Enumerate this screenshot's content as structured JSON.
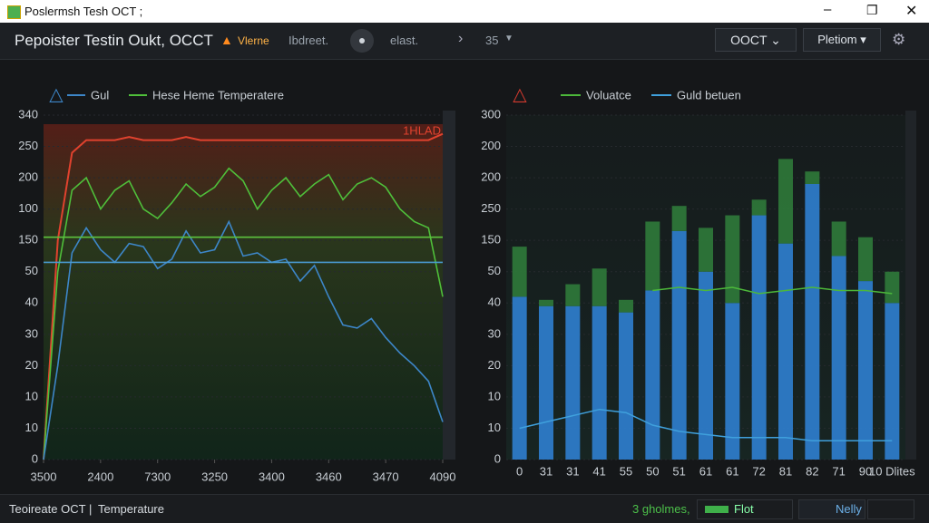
{
  "window": {
    "title": "Poslermsh Tesh OCT ;"
  },
  "toolbar": {
    "title": "Pepoister Testin Oukt, OCCT",
    "warning": "Vlerne",
    "items": [
      "Ibdreet.",
      "elast.",
      "35"
    ],
    "dropdowns": [
      "OOCT",
      "Pletiom"
    ]
  },
  "charts": [
    {
      "type": "line",
      "annotation": "1HLAD",
      "xlim": [
        0,
        28
      ],
      "xticks": [
        {
          "value": 0,
          "label": "3500"
        },
        {
          "value": 4,
          "label": "2400"
        },
        {
          "value": 8,
          "label": "7300"
        },
        {
          "value": 12,
          "label": "3250"
        },
        {
          "value": 16,
          "label": "3400"
        },
        {
          "value": 20,
          "label": "3460"
        },
        {
          "value": 24,
          "label": "3470"
        },
        {
          "value": 28,
          "label": "4090"
        }
      ],
      "ylim": [
        0,
        11
      ],
      "yticks": [
        {
          "value": 11,
          "label": "340"
        },
        {
          "value": 10,
          "label": "250"
        },
        {
          "value": 9,
          "label": "200"
        },
        {
          "value": 8,
          "label": "100"
        },
        {
          "value": 7,
          "label": "150"
        },
        {
          "value": 6,
          "label": "50"
        },
        {
          "value": 5,
          "label": "40"
        },
        {
          "value": 4,
          "label": "30"
        },
        {
          "value": 3,
          "label": "20"
        },
        {
          "value": 2,
          "label": "10"
        },
        {
          "value": 1,
          "label": "10"
        },
        {
          "value": 0,
          "label": "0"
        }
      ],
      "series": [
        {
          "color": "#e0422e",
          "values": [
            0,
            7,
            9.8,
            10.2,
            10.2,
            10.2,
            10.3,
            10.2,
            10.2,
            10.2,
            10.3,
            10.2,
            10.2,
            10.2,
            10.2,
            10.2,
            10.2,
            10.2,
            10.2,
            10.2,
            10.2,
            10.2,
            10.2,
            10.2,
            10.2,
            10.2,
            10.2,
            10.2,
            10.4
          ]
        },
        {
          "name": "Hese Heme Temperatere",
          "color": "#4fbf3a",
          "values": [
            0,
            6,
            8.6,
            9.0,
            8.0,
            8.6,
            8.9,
            8.0,
            7.7,
            8.2,
            8.8,
            8.4,
            8.7,
            9.3,
            8.9,
            8.0,
            8.6,
            9.0,
            8.4,
            8.8,
            9.1,
            8.3,
            8.8,
            9.0,
            8.7,
            8.0,
            7.6,
            7.4,
            5.2
          ]
        },
        {
          "name": "Gul",
          "color": "#3d86c8",
          "values": [
            0,
            3,
            6.6,
            7.4,
            6.7,
            6.3,
            6.9,
            6.8,
            6.1,
            6.4,
            7.3,
            6.6,
            6.7,
            7.6,
            6.5,
            6.6,
            6.3,
            6.4,
            5.7,
            6.2,
            5.2,
            4.3,
            4.2,
            4.5,
            3.9,
            3.4,
            3.0,
            2.5,
            1.2
          ]
        },
        {
          "color": "#5cc23e",
          "values": [
            7.1,
            7.1,
            7.1,
            7.1,
            7.1,
            7.1,
            7.1,
            7.1,
            7.1,
            7.1,
            7.1,
            7.1,
            7.1,
            7.1,
            7.1,
            7.1,
            7.1,
            7.1,
            7.1,
            7.1,
            7.1,
            7.1,
            7.1,
            7.1,
            7.1,
            7.1,
            7.1,
            7.1,
            7.1
          ]
        },
        {
          "color": "#4a9ad0",
          "values": [
            6.3,
            6.3,
            6.3,
            6.3,
            6.3,
            6.3,
            6.3,
            6.3,
            6.3,
            6.3,
            6.3,
            6.3,
            6.3,
            6.3,
            6.3,
            6.3,
            6.3,
            6.3,
            6.3,
            6.3,
            6.3,
            6.3,
            6.3,
            6.3,
            6.3,
            6.3,
            6.3,
            6.3,
            6.3
          ]
        }
      ]
    },
    {
      "type": "bar",
      "categories": [
        "0",
        "31",
        "31",
        "41",
        "55",
        "50",
        "51",
        "61",
        "61",
        "72",
        "81",
        "82",
        "71",
        "90",
        "10 Dlites"
      ],
      "ylim": [
        0,
        11
      ],
      "yticks": [
        {
          "value": 11,
          "label": "300"
        },
        {
          "value": 10,
          "label": "200"
        },
        {
          "value": 9,
          "label": "200"
        },
        {
          "value": 8,
          "label": "250"
        },
        {
          "value": 7,
          "label": "150"
        },
        {
          "value": 6,
          "label": "50"
        },
        {
          "value": 5,
          "label": "40"
        },
        {
          "value": 4,
          "label": "30"
        },
        {
          "value": 3,
          "label": "20"
        },
        {
          "value": 2,
          "label": "10"
        },
        {
          "value": 1,
          "label": "10"
        },
        {
          "value": 0,
          "label": "0"
        }
      ],
      "stacks": [
        {
          "color": "#2f7fd0",
          "values": [
            5.2,
            4.9,
            4.9,
            4.9,
            4.7,
            5.4,
            7.3,
            6.0,
            5.0,
            7.8,
            6.9,
            8.8,
            6.5,
            5.7,
            5.0
          ]
        },
        {
          "color": "#2f7a3a",
          "values": [
            1.6,
            0.2,
            0.7,
            1.2,
            0.4,
            2.2,
            0.8,
            1.4,
            2.8,
            0.5,
            2.7,
            0.4,
            1.1,
            1.4,
            1.0
          ]
        }
      ],
      "series": [
        {
          "name": "Voluatce",
          "color": "#4cb83a",
          "values": [
            null,
            null,
            null,
            null,
            null,
            5.4,
            5.5,
            5.4,
            5.5,
            5.3,
            5.4,
            5.5,
            5.4,
            5.4,
            5.3
          ]
        },
        {
          "name": "Guld betuen",
          "color": "#3fa0dc",
          "values": [
            1.0,
            1.2,
            1.4,
            1.6,
            1.5,
            1.1,
            0.9,
            0.8,
            0.7,
            0.7,
            0.7,
            0.6,
            0.6,
            0.6,
            0.6
          ]
        }
      ]
    }
  ],
  "status": {
    "left": "Teoireate OCT",
    "left2": "Temperature",
    "right": [
      "3 gholmes,",
      "Flot",
      "Nelly"
    ]
  }
}
